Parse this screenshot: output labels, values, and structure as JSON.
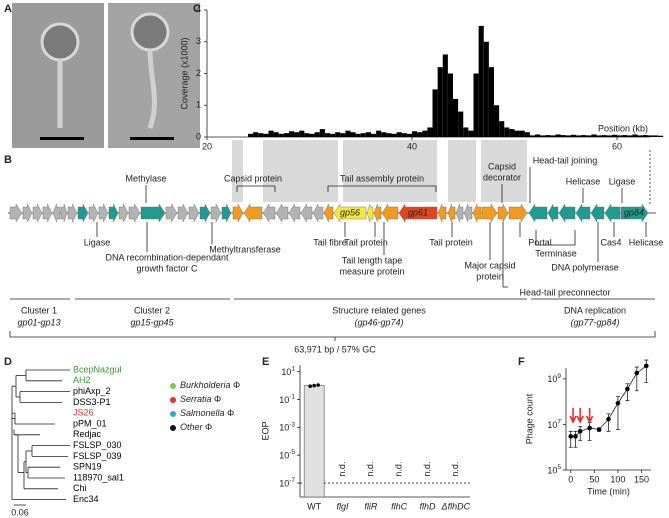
{
  "panels": [
    "A",
    "B",
    "C",
    "D",
    "E",
    "F"
  ],
  "genome": {
    "top_labels": [
      [
        "Methylase"
      ],
      [
        "Capsid protein"
      ],
      [
        "Tail assembly protein"
      ],
      [
        "Capsid",
        "decorator"
      ],
      [
        "Head-tail joining"
      ],
      [
        "Helicase"
      ],
      [
        "Ligase"
      ]
    ],
    "bottom_labels": [
      [
        "Ligase"
      ],
      [
        "DNA recombination-dependant",
        "growth factor C"
      ],
      [
        "Methyltransferase"
      ],
      [
        "Tail fibre"
      ],
      [
        "Tail protein"
      ],
      [
        "Tail length tape",
        "measure protein"
      ],
      [
        "Tail protein"
      ],
      [
        "Major capsid",
        "protein"
      ],
      [
        "Portal"
      ],
      [
        "Terminase"
      ],
      [
        "DNA polymerase"
      ],
      [
        "Cas4"
      ],
      [
        "Helicase"
      ],
      [
        "Head-tail preconnector"
      ]
    ],
    "gene_labels": [
      "gp56",
      "gp61",
      "gp84"
    ],
    "clusters": [
      {
        "name": "Cluster 1",
        "genes": "gp01-gp13"
      },
      {
        "name": "Cluster 2",
        "genes": "gp15-gp45"
      },
      {
        "name": "Structure related genes",
        "genes": "(gp46-gp74)"
      },
      {
        "name": "DNA replication",
        "genes": "(gp77-gp84)"
      }
    ],
    "summary": "63,971 bp / 57% GC"
  },
  "tree": {
    "taxa": [
      {
        "name": "BcepNazgul",
        "color": "#3a9a3a"
      },
      {
        "name": "AH2",
        "color": "#3a9a3a"
      },
      {
        "name": "phiAxp_2",
        "color": "#000000"
      },
      {
        "name": "DSS3-P1",
        "color": "#000000"
      },
      {
        "name": "JS26",
        "color": "#e0332c"
      },
      {
        "name": "pPM_01",
        "color": "#000000"
      },
      {
        "name": "Redjac",
        "color": "#000000"
      },
      {
        "name": "FSLSP_030",
        "color": "#000000"
      },
      {
        "name": "FSLSP_039",
        "color": "#000000"
      },
      {
        "name": "SPN19",
        "color": "#000000"
      },
      {
        "name": "118970_sal1",
        "color": "#000000"
      },
      {
        "name": "Chi",
        "color": "#000000"
      },
      {
        "name": "Enc34",
        "color": "#000000"
      }
    ],
    "legend": [
      {
        "name": "Burkholderia Φ",
        "color": "#7ec850"
      },
      {
        "name": "Serratia Φ",
        "color": "#e0332c"
      },
      {
        "name": "Salmonella Φ",
        "color": "#3aa0d8"
      },
      {
        "name": "Other Φ",
        "color": "#111111"
      }
    ],
    "scale": "0.06"
  },
  "chart_data": [
    {
      "type": "bar",
      "y_label": "Coverage (x1000)",
      "x_label": "Position (kb)",
      "color": "#000000",
      "x": [
        20,
        20.5,
        21,
        21.5,
        22,
        22.5,
        23,
        23.5,
        24,
        24.5,
        25,
        25.5,
        26,
        26.5,
        27,
        27.5,
        28,
        28.5,
        29,
        29.5,
        30,
        30.5,
        31,
        31.5,
        32,
        32.5,
        33,
        33.5,
        34,
        34.5,
        35,
        35.5,
        36,
        36.5,
        37,
        37.5,
        38,
        38.5,
        39,
        39.5,
        40,
        40.5,
        41,
        41.5,
        42,
        42.5,
        43,
        43.5,
        44,
        44.5,
        45,
        45.5,
        46,
        46.5,
        47,
        47.5,
        48,
        48.5,
        49,
        49.5,
        50,
        50.5,
        51,
        51.5,
        52,
        52.5,
        53,
        53.5,
        54,
        54.5,
        55,
        55.5,
        56,
        56.5,
        57,
        57.5,
        58,
        58.5,
        59,
        59.5,
        60,
        60.5,
        61,
        61.5,
        62,
        62.5,
        63,
        63.5,
        64
      ],
      "values": [
        0,
        0,
        0,
        0,
        0,
        0,
        0,
        0,
        0.1,
        0.15,
        0.12,
        0.1,
        0.2,
        0.15,
        0.1,
        0.12,
        0.18,
        0.15,
        0.2,
        0.12,
        0.1,
        0.15,
        0.25,
        0.12,
        0.1,
        0.15,
        0.12,
        0.2,
        0.15,
        0.1,
        0.12,
        0.15,
        0.1,
        0.2,
        0.15,
        0.12,
        0.1,
        0.15,
        0.12,
        0.1,
        0.18,
        0.15,
        0.2,
        0.3,
        1.5,
        2.2,
        2.6,
        2.0,
        1.2,
        0.8,
        0.3,
        0.2,
        2.0,
        3.5,
        3.0,
        2.2,
        1.0,
        0.5,
        0.3,
        0.25,
        0.2,
        0.2,
        0.15,
        0.05,
        0.08,
        0.05,
        0.06,
        0.05,
        0.08,
        0.06,
        0.05,
        0.07,
        0.05,
        0.06,
        0.05,
        0.08,
        0.05,
        0.06,
        0.05,
        0.07,
        0.05,
        0.06,
        0.05,
        0.08,
        0.05,
        0.06,
        0.05,
        0.05,
        0.04
      ],
      "bin_width": 0.5,
      "xlim": [
        20,
        64
      ],
      "xticks": [
        20,
        40,
        60
      ],
      "ylim": [
        0,
        4
      ],
      "yticks": [
        0,
        1,
        2,
        3,
        4
      ]
    },
    {
      "type": "bar",
      "y_label": "EOP",
      "log_y": true,
      "color": "#e0e0e0",
      "categories": [
        "WT",
        "flgI",
        "fliR",
        "flhC",
        "flhD",
        "ΔflhDC"
      ],
      "values": [
        1,
        null,
        null,
        null,
        null,
        null
      ],
      "value_labels": [
        null,
        "n.d.",
        "n.d.",
        "n.d.",
        "n.d.",
        "n.d."
      ],
      "points": [
        0.9,
        1.0,
        1.1
      ],
      "detection_limit": 1e-07,
      "ylim": [
        1e-08,
        30
      ],
      "yticks": [
        {
          "value": 10,
          "label": "10^1"
        },
        {
          "value": 0.1,
          "label": "10^-1"
        },
        {
          "value": 0.001,
          "label": "10^-3"
        },
        {
          "value": 1e-05,
          "label": "10^-5"
        },
        {
          "value": 1e-07,
          "label": "10^-7"
        }
      ]
    },
    {
      "type": "line",
      "y_label": "Phage count",
      "x_label": "Time (min)",
      "log_y": true,
      "color": "#000000",
      "x": [
        0,
        10,
        20,
        40,
        60,
        80,
        100,
        120,
        140,
        160
      ],
      "values": [
        3000000,
        3000000,
        5000000,
        7000000,
        6000000,
        17000000,
        86000000,
        360000000,
        1800000000,
        3700000000
      ],
      "errors": [
        2000000,
        2000000,
        3000000,
        5000000,
        1000000,
        12000000,
        80000000,
        250000000,
        1500000000,
        3000000000
      ],
      "arrow_x": [
        5,
        20,
        40
      ],
      "arrow_color": "#e0332c",
      "xlim": [
        -10,
        170
      ],
      "xticks": [
        0,
        50,
        100,
        150
      ],
      "ylim": [
        100000,
        3000000000
      ],
      "yticks": [
        {
          "value": 1000000000,
          "label": "10^9"
        },
        {
          "value": 10000000,
          "label": "10^7"
        },
        {
          "value": 100000,
          "label": "10^5"
        }
      ]
    }
  ]
}
